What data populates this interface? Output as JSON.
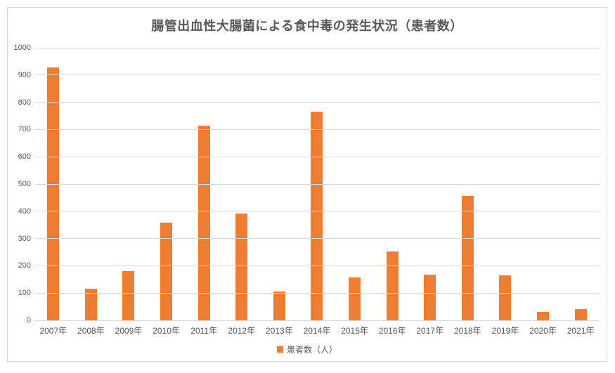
{
  "chart_data": {
    "type": "bar",
    "title": "腸管出血性大腸菌による食中毒の発生状況（患者数）",
    "categories": [
      "2007年",
      "2008年",
      "2009年",
      "2010年",
      "2011年",
      "2012年",
      "2013年",
      "2014年",
      "2015年",
      "2016年",
      "2017年",
      "2018年",
      "2019年",
      "2020年",
      "2021年"
    ],
    "values": [
      928,
      115,
      181,
      358,
      714,
      392,
      105,
      766,
      156,
      252,
      168,
      456,
      165,
      30,
      42
    ],
    "series_name": "患者数（人）",
    "xlabel": "",
    "ylabel": "",
    "ylim": [
      0,
      1000
    ],
    "ytick_interval": 100,
    "grid": true,
    "legend_position": "bottom",
    "bar_color": "#ED7D31"
  },
  "colors": {
    "bar": "#ED7D31",
    "gridline": "#D9D9D9",
    "frame_border": "#D9D9D9",
    "text": "#595959",
    "background": "#FFFFFF"
  }
}
